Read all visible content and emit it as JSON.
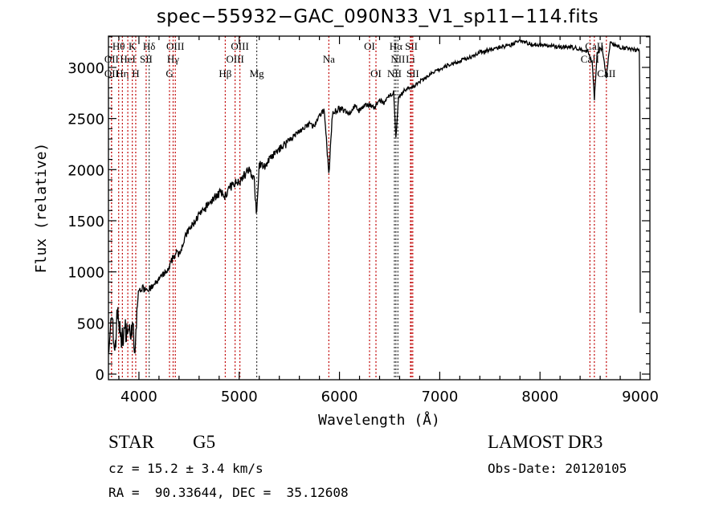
{
  "chart_data": {
    "type": "line",
    "title": "spec−55932−GAC_090N33_V1_sp11−114.fits",
    "xlabel": "Wavelength (Å)",
    "ylabel": "Flux (relative)",
    "xlim": [
      3696,
      9096
    ],
    "ylim": [
      -55,
      3306
    ],
    "xticks": [
      4000,
      5000,
      6000,
      7000,
      8000,
      9000
    ],
    "yticks": [
      0,
      500,
      1000,
      1500,
      2000,
      2500,
      3000
    ],
    "grid": false,
    "series": [
      {
        "name": "spectrum",
        "color": "#000000",
        "x": [
          3700,
          3730,
          3760,
          3790,
          3820,
          3850,
          3880,
          3910,
          3940,
          3960,
          3980,
          4000,
          4050,
          4100,
          4150,
          4200,
          4250,
          4300,
          4340,
          4380,
          4420,
          4480,
          4550,
          4600,
          4650,
          4700,
          4750,
          4800,
          4861,
          4900,
          4950,
          5000,
          5050,
          5100,
          5150,
          5175,
          5200,
          5250,
          5300,
          5350,
          5400,
          5450,
          5500,
          5550,
          5600,
          5650,
          5700,
          5750,
          5800,
          5850,
          5894,
          5930,
          6000,
          6050,
          6100,
          6150,
          6200,
          6250,
          6300,
          6350,
          6400,
          6450,
          6500,
          6540,
          6563,
          6590,
          6650,
          6700,
          6750,
          6800,
          6900,
          7000,
          7100,
          7200,
          7300,
          7400,
          7500,
          7600,
          7700,
          7800,
          7900,
          8000,
          8100,
          8200,
          8300,
          8400,
          8480,
          8520,
          8542,
          8570,
          8620,
          8662,
          8700,
          8750,
          8800,
          8850,
          8900,
          8950,
          8990,
          8995,
          9000
        ],
        "y": [
          350,
          500,
          250,
          650,
          300,
          420,
          450,
          400,
          480,
          150,
          650,
          820,
          850,
          830,
          870,
          930,
          980,
          1020,
          1150,
          1180,
          1230,
          1380,
          1480,
          1560,
          1600,
          1680,
          1720,
          1780,
          1740,
          1820,
          1870,
          1890,
          1950,
          2000,
          1900,
          1550,
          2050,
          2030,
          2100,
          2150,
          2200,
          2250,
          2300,
          2330,
          2380,
          2400,
          2450,
          2420,
          2520,
          2580,
          1950,
          2550,
          2600,
          2580,
          2550,
          2620,
          2580,
          2620,
          2640,
          2600,
          2680,
          2650,
          2720,
          2760,
          2300,
          2700,
          2780,
          2800,
          2820,
          2860,
          2930,
          2980,
          3030,
          3060,
          3100,
          3150,
          3170,
          3200,
          3210,
          3270,
          3230,
          3220,
          3210,
          3200,
          3200,
          3180,
          3150,
          3050,
          2700,
          3150,
          3200,
          2900,
          3250,
          3210,
          3200,
          3190,
          3180,
          3170,
          3170,
          2700,
          600
        ],
        "noise": [
          280,
          280,
          280,
          280,
          250,
          250,
          200,
          200,
          200,
          150,
          80,
          60,
          60,
          60,
          60,
          60,
          60,
          80,
          80,
          80,
          80,
          80,
          80,
          80,
          80,
          80,
          80,
          80,
          80,
          80,
          80,
          80,
          80,
          80,
          80,
          80,
          80,
          80,
          70,
          70,
          70,
          70,
          70,
          60,
          60,
          60,
          60,
          60,
          60,
          60,
          60,
          60,
          50,
          50,
          50,
          50,
          50,
          50,
          50,
          50,
          50,
          50,
          40,
          40,
          40,
          40,
          40,
          40,
          40,
          40,
          40,
          40,
          40,
          40,
          40,
          40,
          40,
          40,
          40,
          40,
          40,
          40,
          40,
          40,
          40,
          40,
          40,
          40,
          40,
          40,
          40,
          40,
          40,
          40,
          40,
          40,
          40,
          40,
          40,
          0,
          0
        ]
      }
    ],
    "lines": [
      {
        "label": "OII",
        "wave": 3727,
        "row": 2,
        "color": "#c00000"
      },
      {
        "label": "Hθ",
        "wave": 3798,
        "row": 1,
        "color": "#c00000"
      },
      {
        "label": "OII",
        "wave": 3727,
        "row": 3,
        "color": "#c00000"
      },
      {
        "label": "Hη",
        "wave": 3835,
        "row": 3,
        "color": "#c00000"
      },
      {
        "label": "HeI",
        "wave": 3889,
        "row": 2,
        "color": "#c00000"
      },
      {
        "label": "K",
        "wave": 3934,
        "row": 1,
        "color": "#c00000"
      },
      {
        "label": "H",
        "wave": 3968,
        "row": 3,
        "color": "#c00000"
      },
      {
        "label": "SII",
        "wave": 4072,
        "row": 2,
        "color": "#c00000"
      },
      {
        "label": "Hδ",
        "wave": 4102,
        "row": 1,
        "color": "#333333"
      },
      {
        "label": "G",
        "wave": 4305,
        "row": 3,
        "color": "#c00000"
      },
      {
        "label": "Hγ",
        "wave": 4341,
        "row": 2,
        "color": "#c00000"
      },
      {
        "label": "OIII",
        "wave": 4363,
        "row": 1,
        "color": "#c00000"
      },
      {
        "label": "Hβ",
        "wave": 4861,
        "row": 3,
        "color": "#c00000"
      },
      {
        "label": "OIII",
        "wave": 4959,
        "row": 2,
        "color": "#c00000"
      },
      {
        "label": "OIII",
        "wave": 5007,
        "row": 1,
        "color": "#c00000"
      },
      {
        "label": "Mg",
        "wave": 5175,
        "row": 3,
        "color": "#333333"
      },
      {
        "label": "Na",
        "wave": 5894,
        "row": 2,
        "color": "#c00000"
      },
      {
        "label": "OI",
        "wave": 6300,
        "row": 1,
        "color": "#c00000"
      },
      {
        "label": "OI",
        "wave": 6364,
        "row": 3,
        "color": "#c00000"
      },
      {
        "label": "NII",
        "wave": 6548,
        "row": 3,
        "color": "#333333"
      },
      {
        "label": "Hα",
        "wave": 6563,
        "row": 1,
        "color": "#333333"
      },
      {
        "label": "NII",
        "wave": 6583,
        "row": 2,
        "color": "#333333"
      },
      {
        "label": "Li",
        "wave": 6708,
        "row": 2,
        "color": "#c00000"
      },
      {
        "label": "SII",
        "wave": 6717,
        "row": 1,
        "color": "#c00000"
      },
      {
        "label": "SII",
        "wave": 6731,
        "row": 3,
        "color": "#c00000"
      },
      {
        "label": "CaII",
        "wave": 8498,
        "row": 2,
        "color": "#c00000"
      },
      {
        "label": "CaII",
        "wave": 8542,
        "row": 1,
        "color": "#c00000"
      },
      {
        "label": "CaII",
        "wave": 8662,
        "row": 3,
        "color": "#c00000"
      }
    ]
  },
  "info": {
    "object_class": "STAR",
    "subclass": "G5",
    "survey": "LAMOST DR3",
    "redshift": "cz = 15.2 ± 3.4 km/s",
    "obs_date": "Obs-Date: 20120105",
    "coords": "RA =  90.33644, DEC =  35.12608"
  }
}
